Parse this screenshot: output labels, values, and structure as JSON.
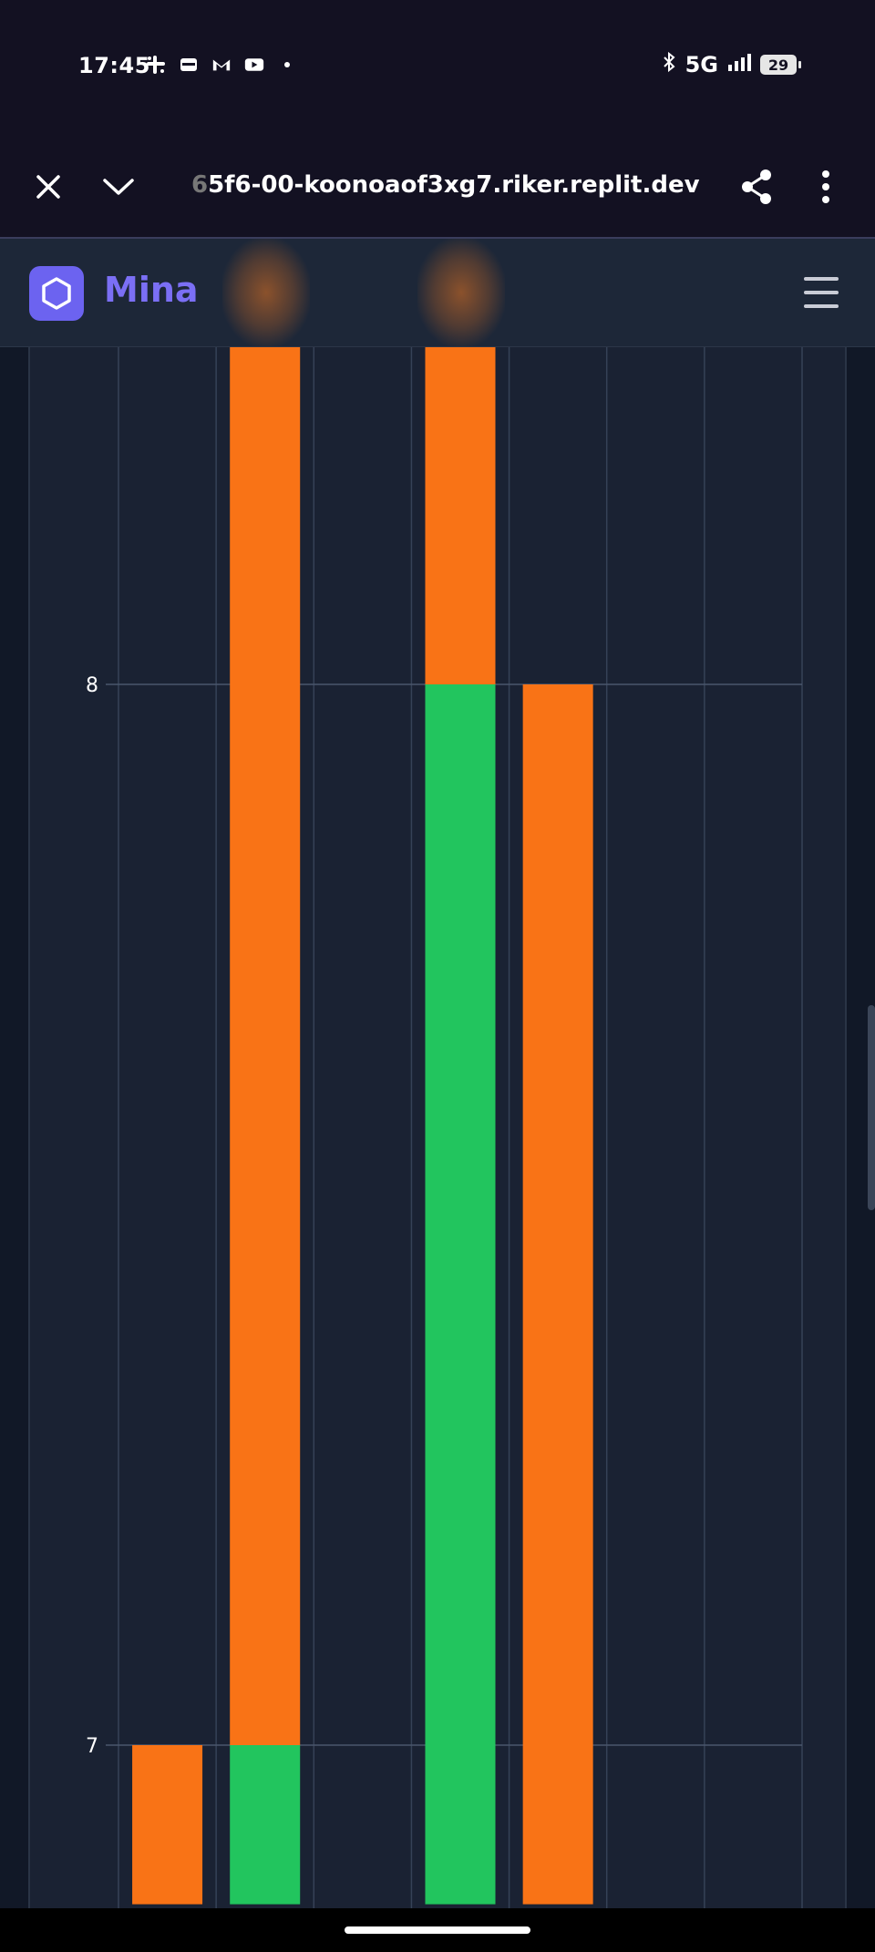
{
  "status_bar": {
    "time": "17:45",
    "network": "5G",
    "battery": "29",
    "notification_icons": [
      "slack-icon",
      "wallet-icon",
      "gmail-icon",
      "youtube-icon",
      "dot-icon"
    ]
  },
  "browser": {
    "url_prefix": "6",
    "url": "5f6-00-koonoaof3xg7.riker.replit.dev"
  },
  "app": {
    "brand": "Mina"
  },
  "colors": {
    "orange": "#f97316",
    "green": "#22c55e",
    "chart_bg": "#1a2233",
    "accent": "#6c63f0"
  },
  "chart_data": {
    "type": "bar",
    "stacked": true,
    "y_tick_labels": [
      "8",
      "7"
    ],
    "visible_y_range": [
      6.85,
      8.32
    ],
    "grid": true,
    "categories_visible": 6,
    "series": [
      {
        "color": "#22c55e",
        "values": [
          null,
          7,
          null,
          8,
          null,
          null
        ]
      },
      {
        "color": "#f97316",
        "values": [
          7,
          8.32,
          null,
          0.32,
          8,
          null
        ]
      }
    ]
  }
}
